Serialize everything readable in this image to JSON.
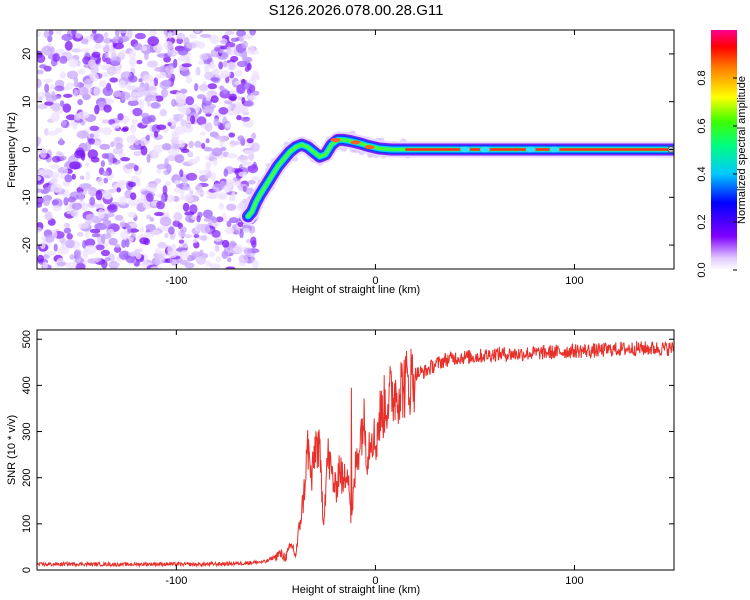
{
  "title": "S126.2026.078.00.28.G11",
  "chart_data": [
    {
      "type": "heatmap",
      "name": "spectrogram",
      "xlabel": "Height of straight line (km)",
      "ylabel": "Frequency (Hz)",
      "xlim": [
        -170,
        150
      ],
      "ylim": [
        -25,
        25
      ],
      "xticks": [
        -100,
        0,
        100
      ],
      "yticks": [
        -20,
        -10,
        0,
        10,
        20
      ],
      "noise_region_x": [
        -170,
        -60
      ],
      "track": {
        "x": [
          -64,
          -62,
          -60,
          -58,
          -55,
          -52,
          -49,
          -46,
          -43,
          -40,
          -37,
          -34,
          -31,
          -28,
          -25,
          -22,
          -19,
          -16,
          -13,
          -10,
          -7,
          -4,
          -1,
          2,
          5,
          8,
          11,
          14,
          17,
          20,
          40,
          60,
          80,
          100,
          120,
          150
        ],
        "y": [
          -14,
          -13,
          -11,
          -9.5,
          -7.5,
          -5.5,
          -3.5,
          -2,
          -0.5,
          0.5,
          1,
          0.5,
          -0.5,
          -1.5,
          -1,
          1,
          2,
          2,
          1.8,
          1.5,
          1.2,
          0.8,
          0.5,
          0.2,
          0.1,
          0,
          0,
          0,
          0,
          0,
          0,
          0,
          0,
          0,
          0,
          0
        ]
      },
      "colorbar": {
        "label": "Normalized spectral amplitude",
        "range": [
          0,
          1
        ],
        "ticks": [
          0.0,
          0.2,
          0.4,
          0.6,
          0.8
        ],
        "tick_labels": [
          "0.0",
          "0.2",
          "0.4",
          "0.6",
          "0.8"
        ]
      }
    },
    {
      "type": "line",
      "name": "snr",
      "xlabel": "Height of straight line (km)",
      "ylabel": "SNR (10 * v/v)",
      "xlim": [
        -170,
        150
      ],
      "ylim": [
        0,
        520
      ],
      "xticks": [
        -100,
        0,
        100
      ],
      "yticks": [
        0,
        100,
        200,
        300,
        400,
        500
      ],
      "color": "#e8302a",
      "series": [
        {
          "name": "SNR",
          "x": [
            -170,
            -150,
            -130,
            -110,
            -90,
            -70,
            -55,
            -48,
            -45,
            -42,
            -40,
            -38,
            -36,
            -34,
            -32,
            -30,
            -28,
            -26,
            -24,
            -22,
            -20,
            -18,
            -16,
            -14,
            -12,
            -10,
            -8,
            -6,
            -4,
            -2,
            0,
            2,
            5,
            8,
            11,
            14,
            17,
            20,
            25,
            30,
            35,
            40,
            50,
            60,
            70,
            80,
            90,
            100,
            110,
            120,
            130,
            140,
            150
          ],
          "values": [
            12,
            13,
            12,
            13,
            12,
            14,
            18,
            35,
            28,
            55,
            30,
            100,
            160,
            270,
            190,
            280,
            250,
            110,
            250,
            210,
            170,
            230,
            180,
            240,
            100,
            220,
            280,
            330,
            250,
            310,
            270,
            330,
            360,
            380,
            390,
            400,
            410,
            425,
            430,
            445,
            455,
            460,
            462,
            468,
            468,
            470,
            472,
            475,
            475,
            478,
            480,
            480,
            480
          ]
        }
      ],
      "spike": {
        "x": -12,
        "value": 395
      }
    }
  ]
}
